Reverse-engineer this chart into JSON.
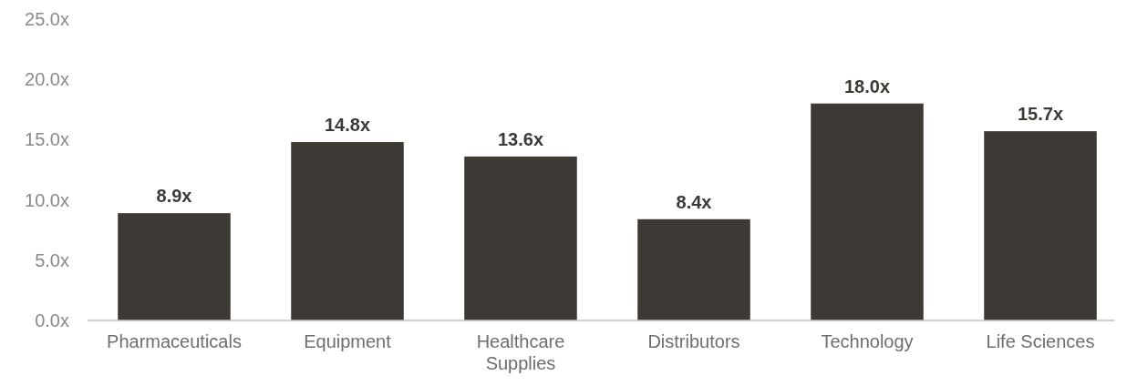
{
  "chart_data": {
    "type": "bar",
    "categories": [
      "Pharmaceuticals",
      "Equipment",
      "Healthcare Supplies",
      "Distributors",
      "Technology",
      "Life Sciences"
    ],
    "values": [
      8.9,
      14.8,
      13.6,
      8.4,
      18.0,
      15.7
    ],
    "value_labels": [
      "8.9x",
      "14.8x",
      "13.6x",
      "8.4x",
      "18.0x",
      "15.7x"
    ],
    "color": "#3d3935",
    "ylim": [
      0,
      25
    ],
    "yticks": [
      {
        "value": 0,
        "label": "0.0x"
      },
      {
        "value": 5,
        "label": "5.0x"
      },
      {
        "value": 10,
        "label": "10.0x"
      },
      {
        "value": 15,
        "label": "15.0x"
      },
      {
        "value": 20,
        "label": "20.0x"
      },
      {
        "value": 25,
        "label": "25.0x"
      }
    ],
    "grid": false
  }
}
